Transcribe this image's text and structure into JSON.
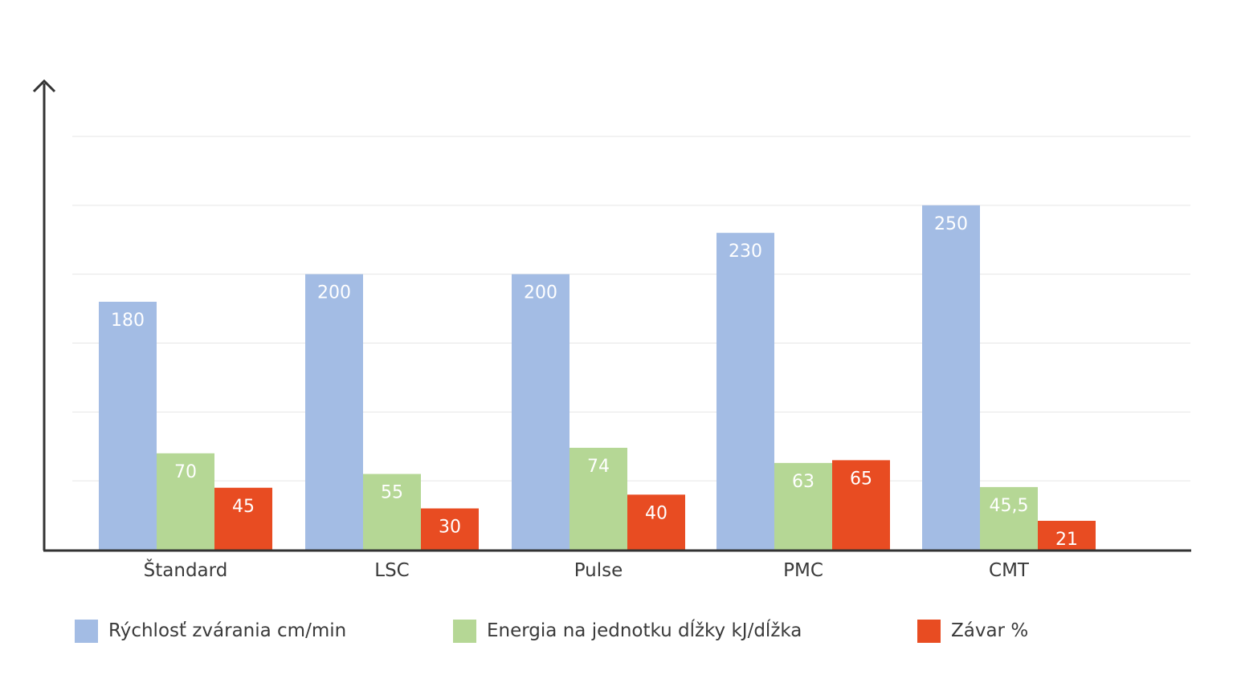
{
  "chart_data": {
    "type": "bar",
    "categories": [
      "Štandard",
      "LSC",
      "Pulse",
      "PMC",
      "CMT"
    ],
    "series": [
      {
        "name": "Rýchlosť zvárania cm/min",
        "values": [
          180,
          200,
          200,
          230,
          250
        ],
        "labels": [
          "180",
          "200",
          "200",
          "230",
          "250"
        ],
        "color": "#a3bce4",
        "label_color": "#ffffff"
      },
      {
        "name": "Energia na jednotku dĺžky kJ/dĺžka",
        "values": [
          70,
          55,
          74,
          63,
          45.5
        ],
        "labels": [
          "70",
          "55",
          "74",
          "63",
          "45,5"
        ],
        "color": "#b5d795",
        "label_color": "#ffffff"
      },
      {
        "name": "Závar %",
        "values": [
          45,
          30,
          40,
          65,
          21
        ],
        "labels": [
          "45",
          "30",
          "40",
          "65",
          "21"
        ],
        "color": "#e84c22",
        "label_color": "#ffffff"
      }
    ],
    "ylim": [
      0,
      300
    ],
    "grid": true,
    "legend": "bottom",
    "axis_color": "#333333",
    "grid_color": "#e6e6e6"
  }
}
